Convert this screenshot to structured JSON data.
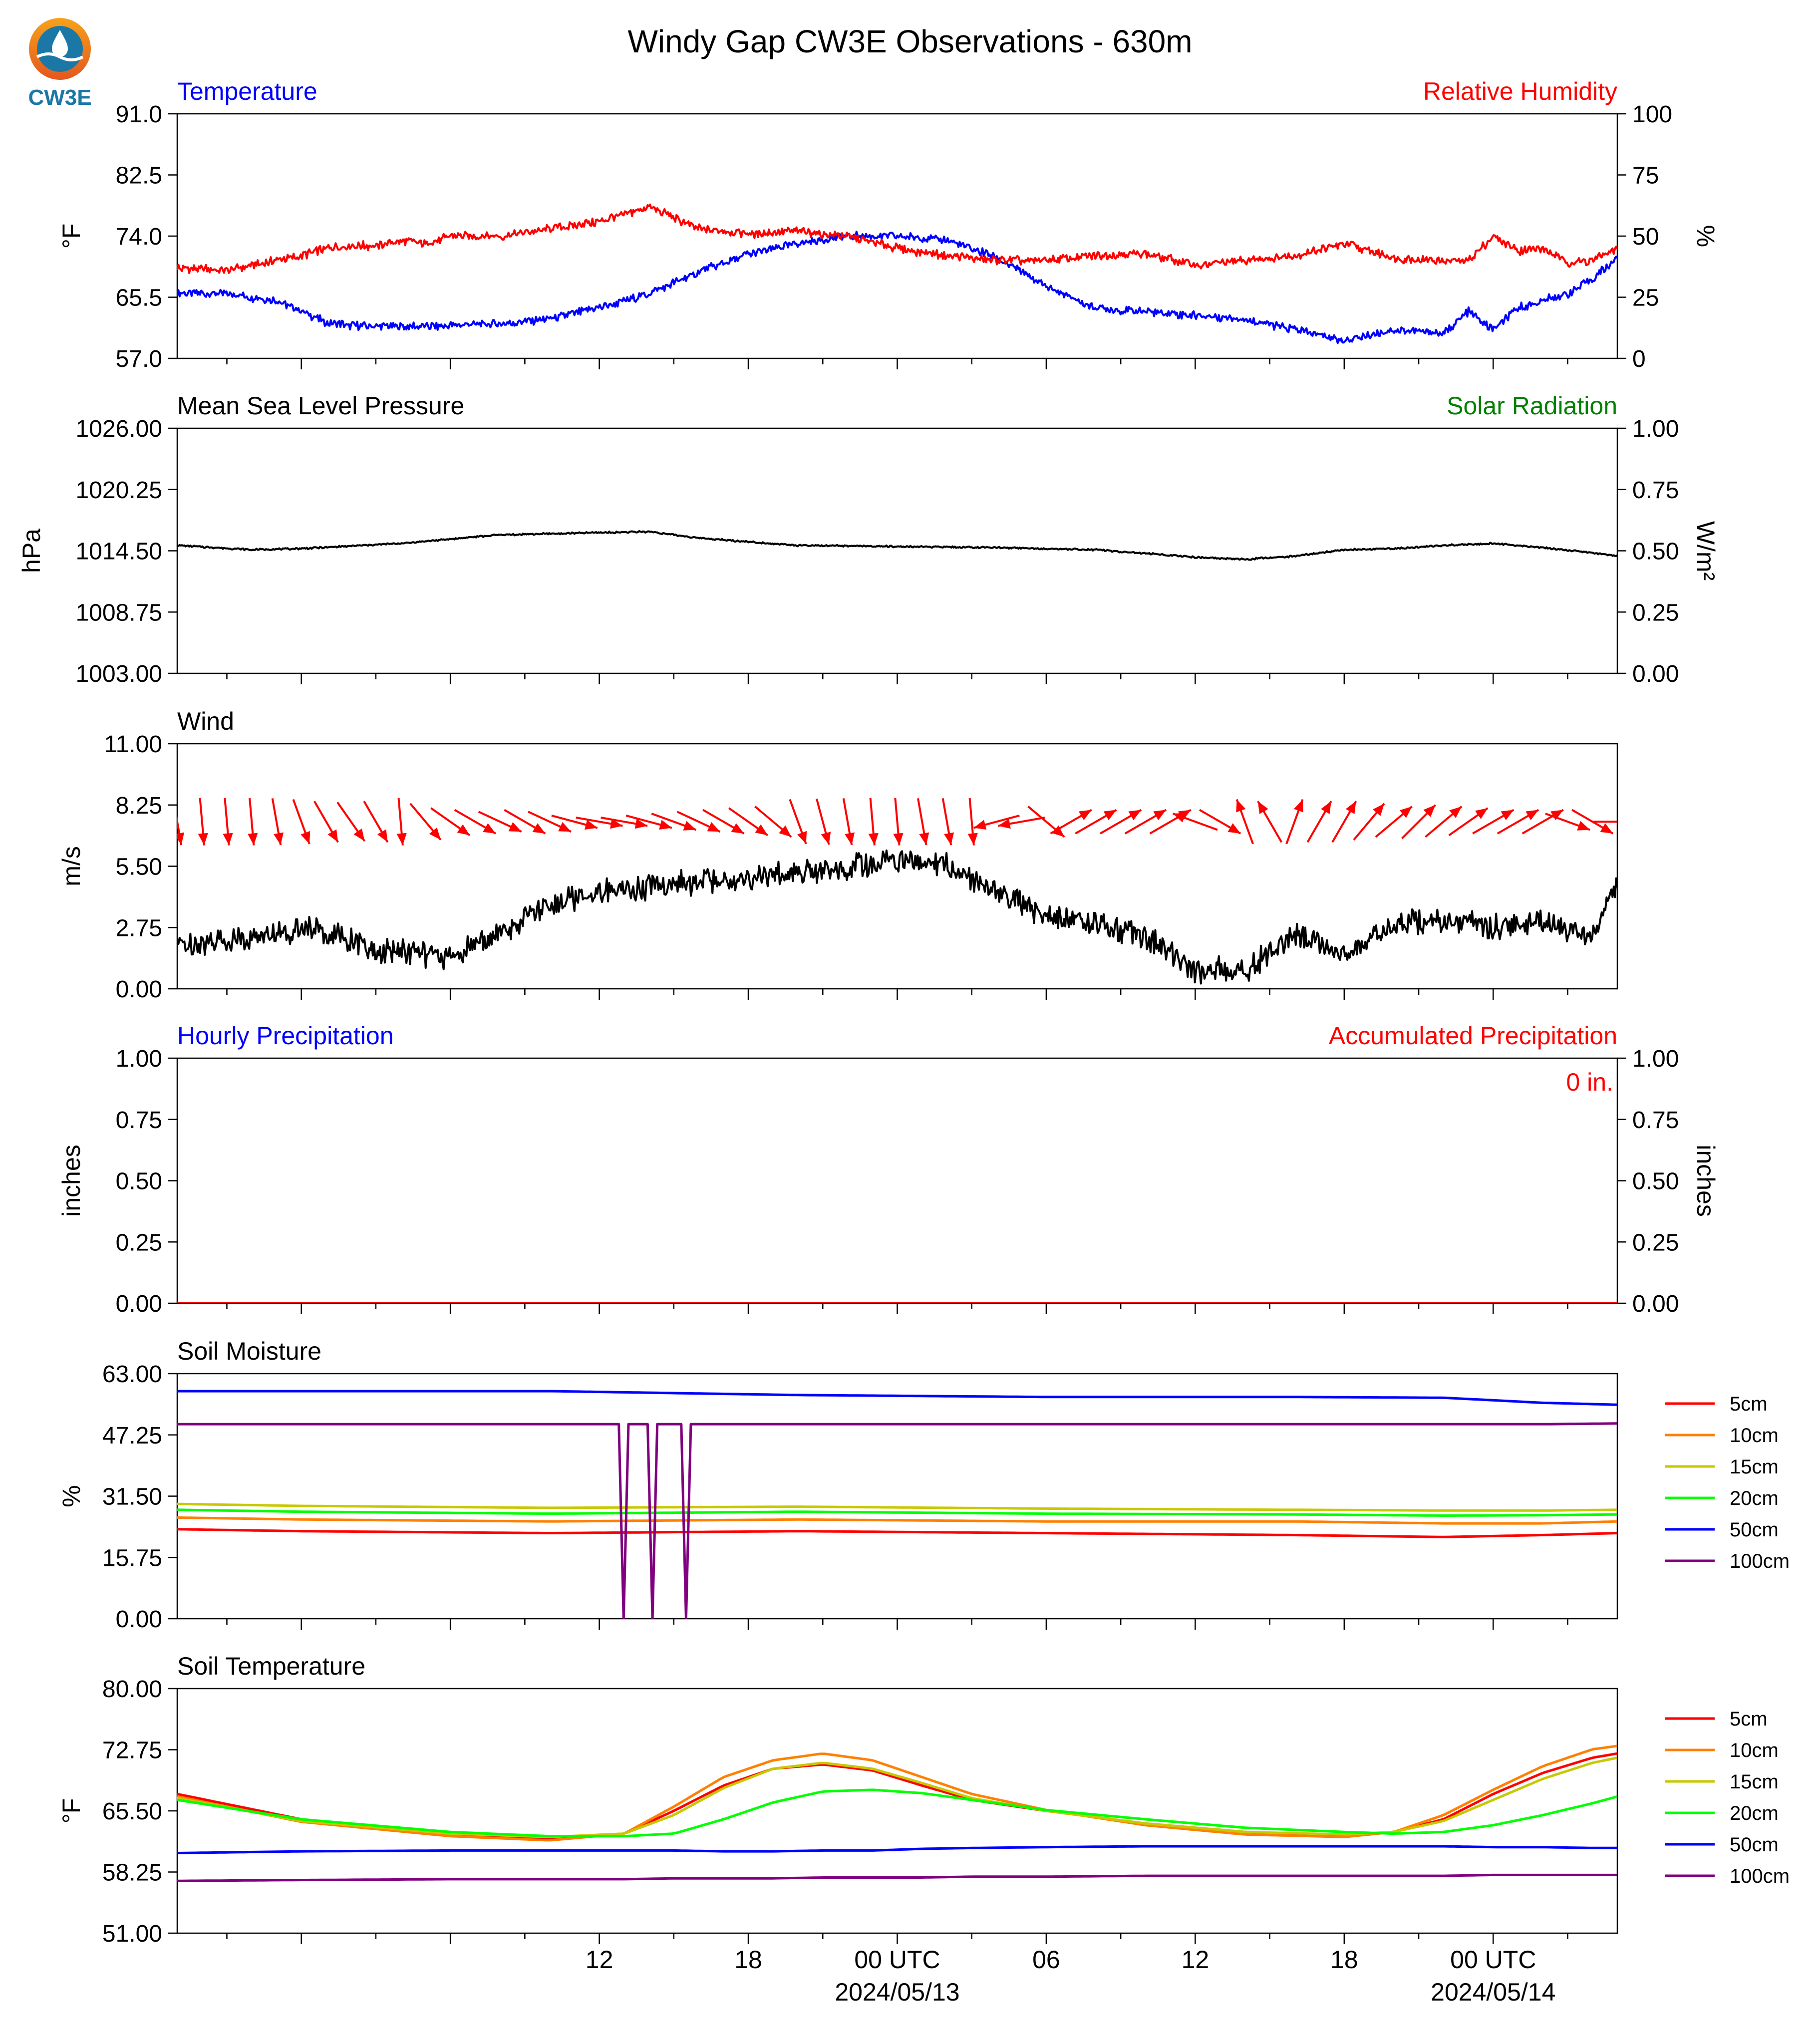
{
  "title": "Windy Gap CW3E Observations - 630m",
  "logo_text": "CW3E",
  "x_axis": {
    "tick_labels": [
      "12",
      "18",
      "00 UTC",
      "06",
      "12",
      "18",
      "00 UTC"
    ],
    "date_labels": [
      "2024/05/13",
      "2024/05/14"
    ]
  },
  "colors": {
    "temperature": "#0000ff",
    "humidity": "#ff0000",
    "pressure": "#000000",
    "solar": "#008000",
    "wind_speed": "#000000",
    "wind_arrow": "#ff0000",
    "hourly_precip": "#0000ff",
    "accum_precip": "#ff0000"
  },
  "chart_data": [
    {
      "type": "line",
      "title": "",
      "left_label": "Temperature",
      "right_label": "Relative Humidity",
      "ylabel": "°F",
      "y2label": "%",
      "ylim": [
        57.0,
        91.0
      ],
      "y2lim": [
        0,
        100
      ],
      "y_ticks": [
        "91.0",
        "82.5",
        "74.0",
        "65.5",
        "57.0"
      ],
      "y2_ticks": [
        "100",
        "75",
        "50",
        "25",
        "0"
      ],
      "x_hours": [
        -5,
        -3,
        -1,
        0,
        1,
        2,
        3,
        4,
        5,
        5.5,
        6,
        8,
        10,
        12,
        14,
        16,
        18,
        20,
        22,
        24,
        26,
        28,
        30,
        32,
        34,
        36,
        38,
        40,
        42,
        44,
        46,
        47,
        48,
        49,
        50,
        51,
        52,
        53
      ],
      "series": [
        {
          "name": "Temperature",
          "axis": "left",
          "values": [
            66,
            66,
            65,
            63.5,
            62,
            61.6,
            61.5,
            61.5,
            61.5,
            61.5,
            61.6,
            61.8,
            62.5,
            64,
            66,
            69,
            71.5,
            73,
            74,
            74,
            73.5,
            71,
            67,
            64,
            63.5,
            63,
            62.5,
            61,
            59.5,
            61,
            60.5,
            63.5,
            61,
            64,
            65,
            66,
            68,
            71
          ]
        },
        {
          "name": "Relative Humidity",
          "axis": "right",
          "values": [
            37,
            36,
            40,
            42,
            45,
            46,
            46,
            48,
            47,
            48,
            50,
            50,
            53,
            56,
            62,
            53,
            51,
            52,
            50,
            45,
            42,
            40,
            40,
            42,
            43,
            38,
            40,
            42,
            47,
            41,
            40,
            40,
            50,
            44,
            45,
            39,
            40,
            45
          ]
        }
      ]
    },
    {
      "type": "line",
      "left_label": "Mean Sea Level Pressure",
      "right_label": "Solar Radiation",
      "ylabel": "hPa",
      "y2label": "W/m²",
      "ylim": [
        1003.0,
        1026.0
      ],
      "y2lim": [
        0.0,
        1.0
      ],
      "y_ticks": [
        "1026.00",
        "1020.25",
        "1014.50",
        "1008.75",
        "1003.00"
      ],
      "y2_ticks": [
        "1.00",
        "0.75",
        "0.50",
        "0.25",
        "0.00"
      ],
      "x_hours": [
        -5,
        -2,
        0,
        4,
        8,
        14,
        16,
        20,
        24,
        28,
        32,
        36,
        38,
        40,
        42,
        44,
        46,
        48,
        50,
        52,
        53
      ],
      "series": [
        {
          "name": "Mean Sea Level Pressure",
          "axis": "left",
          "values": [
            1015.0,
            1014.6,
            1014.7,
            1015.2,
            1016.0,
            1016.3,
            1015.7,
            1015.0,
            1014.9,
            1014.8,
            1014.6,
            1013.9,
            1013.7,
            1014.0,
            1014.6,
            1014.7,
            1015.0,
            1015.2,
            1014.8,
            1014.3,
            1014.0
          ]
        }
      ]
    },
    {
      "type": "line",
      "left_label": "Wind",
      "ylabel": "m/s",
      "ylim": [
        0.0,
        11.0
      ],
      "y_ticks": [
        "11.00",
        "8.25",
        "5.50",
        "2.75",
        "0.00"
      ],
      "x_hours": [
        -5,
        -3,
        -1,
        0,
        2,
        3,
        4,
        6,
        8,
        10,
        12,
        14,
        16,
        18,
        20,
        22,
        24,
        26,
        28,
        30,
        32,
        33,
        34,
        35,
        36,
        38,
        40,
        42,
        44,
        46,
        48,
        50,
        52,
        53
      ],
      "series": [
        {
          "name": "Wind Speed",
          "axis": "left",
          "values": [
            1.9,
            2.2,
            2.4,
            2.7,
            2.3,
            1.5,
            1.8,
            1.4,
            2.5,
            3.8,
            4.3,
            4.6,
            4.8,
            5.0,
            5.2,
            5.4,
            5.8,
            5.6,
            4.3,
            3.3,
            3.0,
            2.7,
            2.4,
            1.6,
            0.8,
            0.8,
            2.4,
            1.6,
            2.9,
            3.0,
            2.8,
            3.1,
            2.2,
            4.8
          ]
        }
      ],
      "arrows_x_hours": [
        -5,
        -4,
        -3,
        -2,
        -1,
        0,
        1,
        2,
        3,
        4,
        5,
        6,
        7,
        8,
        9,
        10,
        11,
        12,
        13,
        14,
        15,
        16,
        17,
        18,
        19,
        20,
        21,
        22,
        23,
        24,
        25,
        26,
        27,
        28,
        29,
        30,
        31,
        32,
        33,
        34,
        35,
        36,
        37,
        38,
        39,
        40,
        41,
        42,
        43,
        44,
        45,
        46,
        47,
        48,
        49,
        50,
        51,
        52,
        53
      ],
      "arrows_direction_deg": [
        350,
        355,
        355,
        355,
        350,
        340,
        330,
        325,
        330,
        355,
        320,
        305,
        300,
        295,
        300,
        295,
        285,
        280,
        280,
        285,
        290,
        295,
        300,
        305,
        310,
        340,
        345,
        350,
        355,
        355,
        350,
        350,
        355,
        75,
        80,
        310,
        240,
        240,
        240,
        240,
        240,
        110,
        300,
        160,
        150,
        200,
        210,
        210,
        220,
        230,
        225,
        230,
        235,
        240,
        240,
        240,
        290,
        300,
        270
      ]
    },
    {
      "type": "line",
      "left_label": "Hourly Precipitation",
      "right_label": "Accumulated Precipitation",
      "annotation": "0 in.",
      "ylabel": "inches",
      "y2label": "inches",
      "ylim": [
        0.0,
        1.0
      ],
      "y2lim": [
        0.0,
        1.0
      ],
      "y_ticks": [
        "1.00",
        "0.75",
        "0.50",
        "0.25",
        "0.00"
      ],
      "y2_ticks": [
        "1.00",
        "0.75",
        "0.50",
        "0.25",
        "0.00"
      ],
      "x_hours": [
        -5,
        53
      ],
      "series": [
        {
          "name": "Hourly Precipitation",
          "axis": "left",
          "values": [
            0,
            0
          ]
        },
        {
          "name": "Accumulated Precipitation",
          "axis": "right",
          "values": [
            0,
            0
          ]
        }
      ]
    },
    {
      "type": "line",
      "left_label": "Soil Moisture",
      "ylabel": "%",
      "ylim": [
        0.0,
        63.0
      ],
      "y_ticks": [
        "63.00",
        "47.25",
        "31.50",
        "15.75",
        "0.00"
      ],
      "x_hours": [
        -5,
        0,
        10,
        20,
        30,
        40,
        46,
        50,
        53
      ],
      "series": [
        {
          "name": "5cm",
          "color": "#ff0000",
          "values": [
            23.0,
            22.5,
            22.0,
            22.5,
            22.0,
            21.5,
            21.0,
            21.5,
            22.0
          ]
        },
        {
          "name": "10cm",
          "color": "#ff8000",
          "values": [
            26.0,
            25.5,
            25.0,
            25.5,
            25.0,
            25.0,
            24.5,
            24.5,
            25.0
          ]
        },
        {
          "name": "15cm",
          "color": "#c8c800",
          "values": [
            29.5,
            29.0,
            28.5,
            28.8,
            28.3,
            28.0,
            27.8,
            27.8,
            28.0
          ]
        },
        {
          "name": "20cm",
          "color": "#00ff00",
          "values": [
            28.0,
            27.5,
            27.0,
            27.5,
            27.0,
            26.8,
            26.5,
            26.6,
            26.8
          ]
        },
        {
          "name": "50cm",
          "color": "#0000ff",
          "values": [
            58.5,
            58.5,
            58.5,
            57.5,
            57.0,
            57.0,
            56.8,
            55.5,
            55.0
          ]
        },
        {
          "name": "100cm",
          "color": "#800080",
          "values": [
            50.0,
            50.0,
            50.0,
            50.0,
            50.0,
            50.0,
            50.0,
            50.0,
            50.2
          ]
        }
      ],
      "dropouts": {
        "series": "100cm",
        "x_hours": [
          13,
          14.2,
          15.5
        ],
        "value": 0
      }
    },
    {
      "type": "line",
      "left_label": "Soil Temperature",
      "ylabel": "°F",
      "ylim": [
        51.0,
        80.0
      ],
      "y_ticks": [
        "80.00",
        "72.75",
        "65.50",
        "58.25",
        "51.00"
      ],
      "x_hours": [
        -5,
        0,
        6,
        10,
        13,
        15,
        17,
        19,
        21,
        23,
        25,
        27,
        30,
        34,
        38,
        42,
        44,
        46,
        48,
        50,
        52,
        53
      ],
      "series": [
        {
          "name": "5cm",
          "color": "#ff0000",
          "values": [
            67.5,
            64.5,
            62.8,
            62.2,
            62.8,
            65.5,
            68.5,
            70.5,
            71.0,
            70.3,
            68.5,
            66.8,
            65.5,
            64.0,
            63.0,
            62.5,
            63.0,
            64.5,
            67.5,
            70.0,
            71.8,
            72.3
          ]
        },
        {
          "name": "10cm",
          "color": "#ff8000",
          "values": [
            67.2,
            64.2,
            62.5,
            62.0,
            62.8,
            66.0,
            69.5,
            71.5,
            72.3,
            71.5,
            69.5,
            67.5,
            65.6,
            63.8,
            62.7,
            62.4,
            63.0,
            65.0,
            68.0,
            70.8,
            72.8,
            73.2
          ]
        },
        {
          "name": "15cm",
          "color": "#c8c800",
          "values": [
            67.0,
            64.3,
            62.8,
            62.4,
            62.8,
            65.0,
            68.2,
            70.5,
            71.2,
            70.5,
            68.8,
            67.0,
            65.5,
            64.0,
            63.0,
            62.7,
            63.0,
            64.3,
            66.8,
            69.3,
            71.2,
            71.8
          ]
        },
        {
          "name": "20cm",
          "color": "#00ff00",
          "values": [
            66.8,
            64.5,
            63.0,
            62.5,
            62.5,
            62.8,
            64.5,
            66.5,
            67.8,
            68.0,
            67.6,
            66.8,
            65.6,
            64.5,
            63.5,
            63.0,
            62.8,
            63.0,
            63.8,
            65.0,
            66.4,
            67.2
          ]
        },
        {
          "name": "50cm",
          "color": "#0000ff",
          "values": [
            60.5,
            60.7,
            60.8,
            60.8,
            60.8,
            60.8,
            60.7,
            60.7,
            60.8,
            60.8,
            61.0,
            61.1,
            61.2,
            61.3,
            61.3,
            61.3,
            61.3,
            61.3,
            61.2,
            61.2,
            61.1,
            61.1
          ]
        },
        {
          "name": "100cm",
          "color": "#800080",
          "values": [
            57.2,
            57.3,
            57.4,
            57.4,
            57.4,
            57.5,
            57.5,
            57.5,
            57.6,
            57.6,
            57.6,
            57.7,
            57.7,
            57.8,
            57.8,
            57.8,
            57.8,
            57.8,
            57.9,
            57.9,
            57.9,
            57.9
          ]
        }
      ]
    }
  ]
}
